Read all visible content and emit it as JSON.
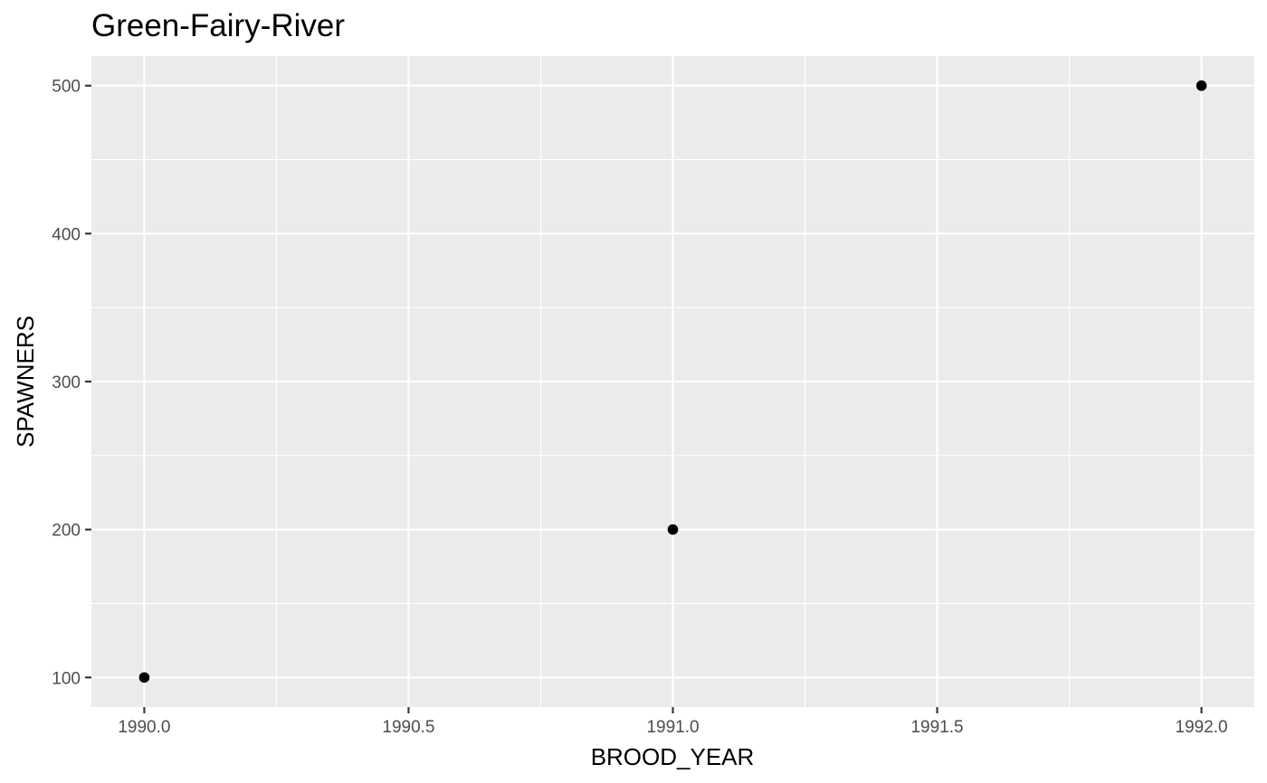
{
  "chart_data": {
    "type": "scatter",
    "title": "Green-Fairy-River",
    "xlabel": "BROOD_YEAR",
    "ylabel": "SPAWNERS",
    "x": [
      1990,
      1991,
      1992
    ],
    "y": [
      100,
      200,
      500
    ],
    "xlim": [
      1989.9,
      1992.1
    ],
    "ylim": [
      80,
      520
    ],
    "xticks": [
      1990.0,
      1990.5,
      1991.0,
      1991.5,
      1992.0
    ],
    "xtick_labels": [
      "1990.0",
      "1990.5",
      "1991.0",
      "1991.5",
      "1992.0"
    ],
    "yticks": [
      100,
      200,
      300,
      400,
      500
    ],
    "ytick_labels": [
      "100",
      "200",
      "300",
      "400",
      "500"
    ],
    "grid": true,
    "legend": "none",
    "colors": {
      "panel_background": "#ebebeb",
      "grid_major": "#ffffff",
      "point": "#000000",
      "tick_label": "#4d4d4d"
    }
  }
}
